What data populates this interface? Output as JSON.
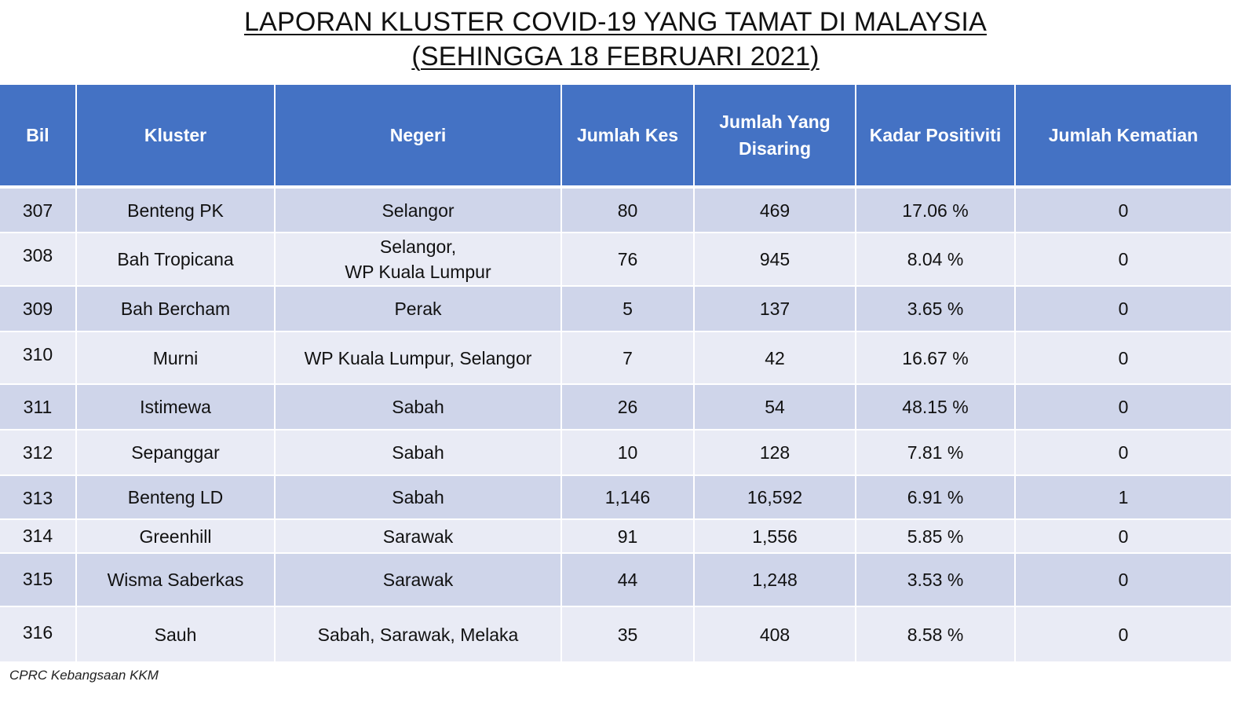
{
  "title": {
    "line1": "LAPORAN KLUSTER COVID-19 YANG TAMAT DI MALAYSIA",
    "line2": "(SEHINGGA 18 FEBRUARI 2021)"
  },
  "table": {
    "headers": {
      "bil": "Bil",
      "kluster": "Kluster",
      "negeri": "Negeri",
      "jumlah_kes": "Jumlah Kes",
      "jumlah_disaring": "Jumlah Yang Disaring",
      "kadar_positiviti": "Kadar Positiviti",
      "jumlah_kematian": "Jumlah Kematian"
    },
    "rows": [
      {
        "bil": "307",
        "kluster": "Benteng PK",
        "negeri": "Selangor",
        "kes": "80",
        "disaring": "469",
        "positiviti": "17.06 %",
        "kematian": "0"
      },
      {
        "bil": "308",
        "kluster": "Bah Tropicana",
        "negeri": "Selangor,\nWP Kuala Lumpur",
        "kes": "76",
        "disaring": "945",
        "positiviti": "8.04 %",
        "kematian": "0"
      },
      {
        "bil": "309",
        "kluster": "Bah Bercham",
        "negeri": "Perak",
        "kes": "5",
        "disaring": "137",
        "positiviti": "3.65 %",
        "kematian": "0"
      },
      {
        "bil": "310",
        "kluster": "Murni",
        "negeri": "WP Kuala Lumpur, Selangor",
        "kes": "7",
        "disaring": "42",
        "positiviti": "16.67 %",
        "kematian": "0"
      },
      {
        "bil": "311",
        "kluster": "Istimewa",
        "negeri": "Sabah",
        "kes": "26",
        "disaring": "54",
        "positiviti": "48.15 %",
        "kematian": "0"
      },
      {
        "bil": "312",
        "kluster": "Sepanggar",
        "negeri": "Sabah",
        "kes": "10",
        "disaring": "128",
        "positiviti": "7.81 %",
        "kematian": "0"
      },
      {
        "bil": "313",
        "kluster": "Benteng LD",
        "negeri": "Sabah",
        "kes": "1,146",
        "disaring": "16,592",
        "positiviti": "6.91 %",
        "kematian": "1"
      },
      {
        "bil": "314",
        "kluster": "Greenhill",
        "negeri": "Sarawak",
        "kes": "91",
        "disaring": "1,556",
        "positiviti": "5.85 %",
        "kematian": "0"
      },
      {
        "bil": "315",
        "kluster": "Wisma Saberkas",
        "negeri": "Sarawak",
        "kes": "44",
        "disaring": "1,248",
        "positiviti": "3.53 %",
        "kematian": "0"
      },
      {
        "bil": "316",
        "kluster": "Sauh",
        "negeri": "Sabah, Sarawak, Melaka",
        "kes": "35",
        "disaring": "408",
        "positiviti": "8.58 %",
        "kematian": "0"
      }
    ]
  },
  "footnote": "CPRC Kebangsaan KKM",
  "colors": {
    "header_bg": "#4472c4",
    "row_dark": "#cfd5ea",
    "row_light": "#e9ebf5"
  }
}
